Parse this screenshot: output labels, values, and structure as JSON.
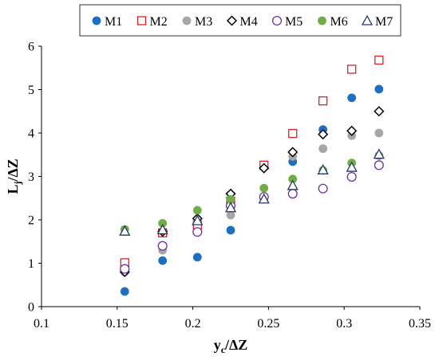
{
  "chart_data": {
    "type": "scatter",
    "xlabel": "y",
    "xlabel_sub": "c",
    "xlabel_rest": "/ΔZ",
    "ylabel": "L",
    "ylabel_sub": "j",
    "ylabel_rest": "/ΔZ",
    "xlim": [
      0.1,
      0.35
    ],
    "ylim": [
      0,
      6
    ],
    "x_ticks": [
      0.1,
      0.15,
      0.2,
      0.25,
      0.3,
      0.35
    ],
    "x_tick_labels": [
      "0.1",
      "0.15",
      "0.2",
      "0.25",
      "0.3",
      "0.35"
    ],
    "y_ticks": [
      0,
      1,
      2,
      3,
      4,
      5,
      6
    ],
    "y_tick_labels": [
      "0",
      "1",
      "2",
      "3",
      "4",
      "5",
      "6"
    ],
    "grid": false,
    "legend_position": "top",
    "series": [
      {
        "name": "M1",
        "marker": "circle-filled",
        "color": "#1f6fc1",
        "x": [
          0.155,
          0.18,
          0.203,
          0.225,
          0.247,
          0.266,
          0.286,
          0.305,
          0.323
        ],
        "y": [
          0.35,
          1.06,
          1.14,
          1.76,
          3.24,
          3.34,
          4.08,
          4.81,
          5.01
        ]
      },
      {
        "name": "M2",
        "marker": "square-open",
        "color": "#e02020",
        "x": [
          0.155,
          0.18,
          0.203,
          0.225,
          0.247,
          0.266,
          0.286,
          0.305,
          0.323
        ],
        "y": [
          1.01,
          1.7,
          1.88,
          2.43,
          3.26,
          3.99,
          4.74,
          5.47,
          5.68
        ]
      },
      {
        "name": "M3",
        "marker": "circle-filled",
        "color": "#a6a6a6",
        "x": [
          0.155,
          0.18,
          0.203,
          0.225,
          0.247,
          0.266,
          0.286,
          0.305,
          0.323
        ],
        "y": [
          0.8,
          1.3,
          1.98,
          2.11,
          2.48,
          3.46,
          3.64,
          3.94,
          4.0
        ]
      },
      {
        "name": "M4",
        "marker": "diamond-open",
        "color": "#000000",
        "x": [
          0.155,
          0.18,
          0.203,
          0.225,
          0.247,
          0.266,
          0.286,
          0.305,
          0.323
        ],
        "y": [
          0.8,
          1.73,
          2.03,
          2.6,
          3.19,
          3.56,
          3.97,
          4.05,
          4.5
        ]
      },
      {
        "name": "M5",
        "marker": "circle-open",
        "color": "#7030a0",
        "x": [
          0.155,
          0.18,
          0.203,
          0.225,
          0.247,
          0.266,
          0.286,
          0.305,
          0.323
        ],
        "y": [
          0.87,
          1.4,
          1.72,
          2.32,
          2.53,
          2.6,
          2.72,
          2.99,
          3.26
        ]
      },
      {
        "name": "M6",
        "marker": "circle-filled",
        "color": "#70ad47",
        "x": [
          0.155,
          0.18,
          0.203,
          0.225,
          0.247,
          0.266,
          0.286,
          0.305,
          0.323
        ],
        "y": [
          1.78,
          1.92,
          2.22,
          2.47,
          2.73,
          2.94,
          3.14,
          3.31,
          3.48
        ]
      },
      {
        "name": "M7",
        "marker": "triangle-open",
        "color": "#1f3864",
        "x": [
          0.155,
          0.18,
          0.203,
          0.225,
          0.247,
          0.266,
          0.286,
          0.305,
          0.323
        ],
        "y": [
          1.74,
          1.77,
          1.98,
          2.28,
          2.48,
          2.79,
          3.15,
          3.21,
          3.51
        ]
      }
    ]
  }
}
